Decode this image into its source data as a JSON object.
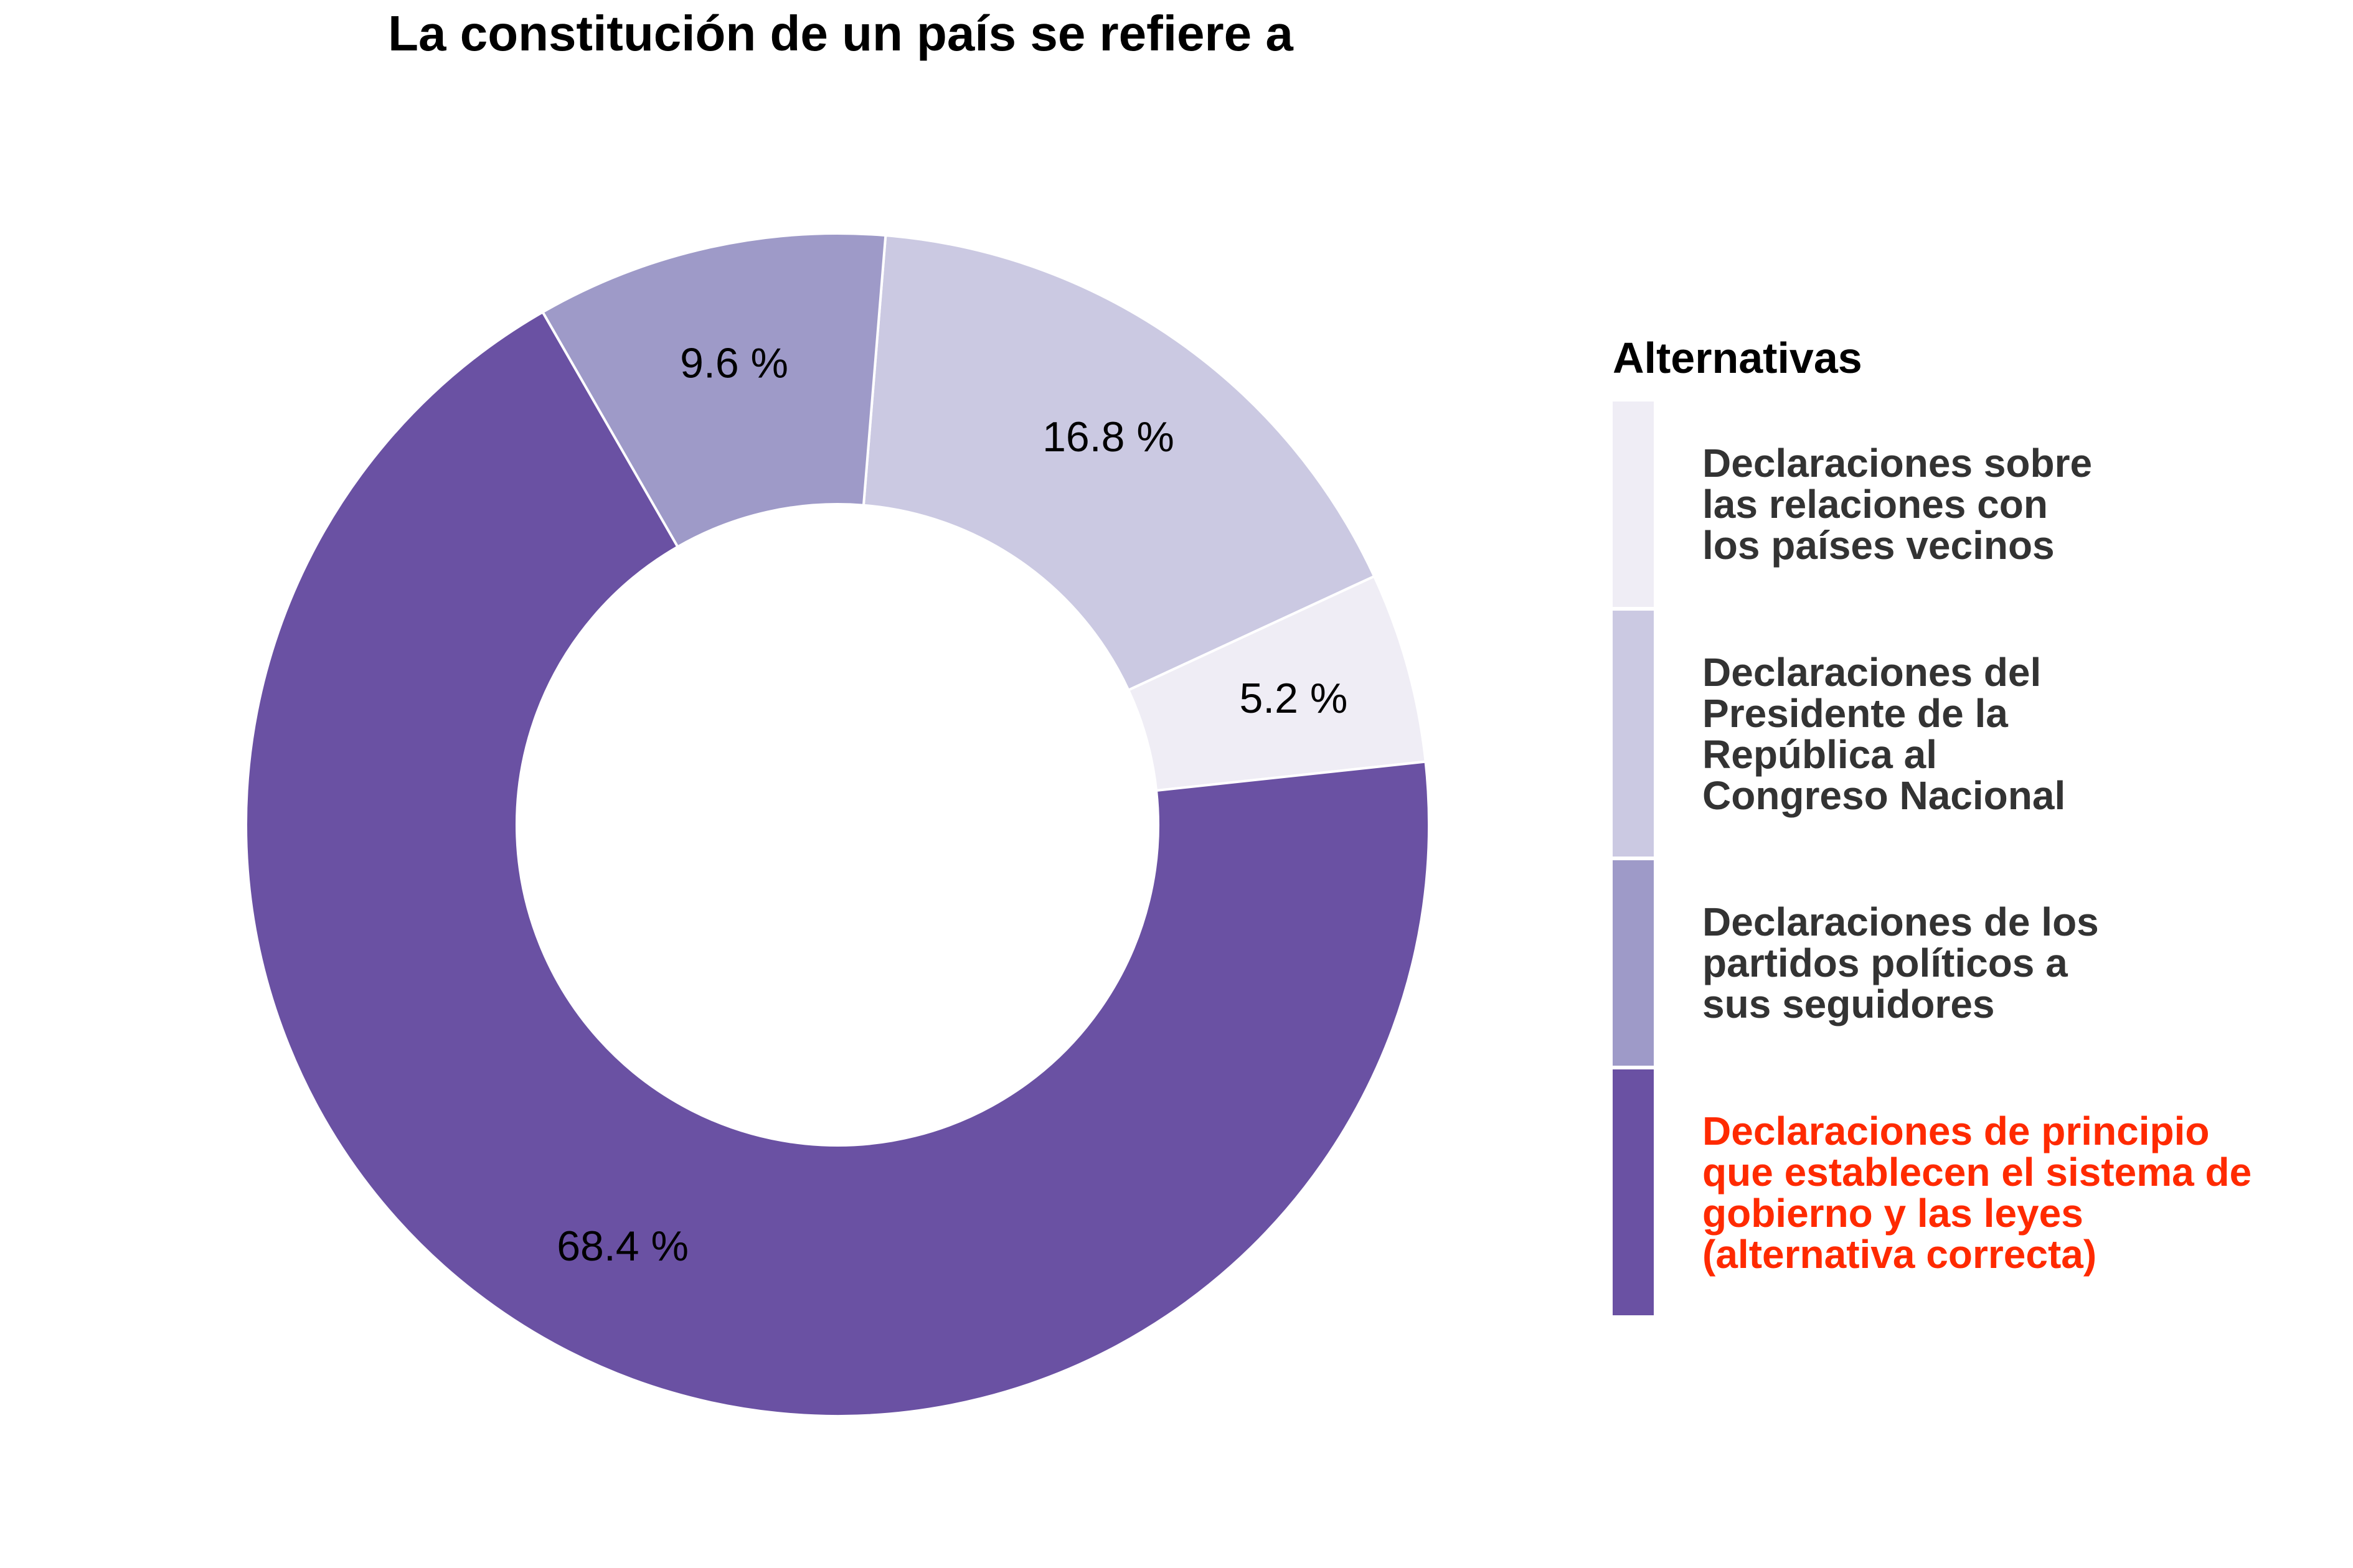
{
  "chart_data": {
    "type": "pie",
    "title": "La constitución de un país se refiere a",
    "legend_title": "Alternativas",
    "legend_position": "right",
    "donut": true,
    "slices": [
      {
        "label": "Declaraciones sobre\nlas relaciones con\nlos países vecinos",
        "value": 5.2,
        "value_label": "5.2 %",
        "color": "#efedf5",
        "label_color": "#333333"
      },
      {
        "label": "Declaraciones del\nPresidente de la\nRepública al\nCongreso Nacional",
        "value": 16.8,
        "value_label": "16.8 %",
        "color": "#cbc9e2",
        "label_color": "#333333"
      },
      {
        "label": "Declaraciones de los\npartidos políticos a\nsus seguidores",
        "value": 9.6,
        "value_label": "9.6 %",
        "color": "#9e9ac8",
        "label_color": "#333333"
      },
      {
        "label": "Declaraciones de principio\nque establecen el sistema de\ngobierno y las leyes\n(alternativa correcta)",
        "value": 68.4,
        "value_label": "68.4 %",
        "color": "#6a51a3",
        "label_color": "#ff2a00"
      }
    ]
  }
}
